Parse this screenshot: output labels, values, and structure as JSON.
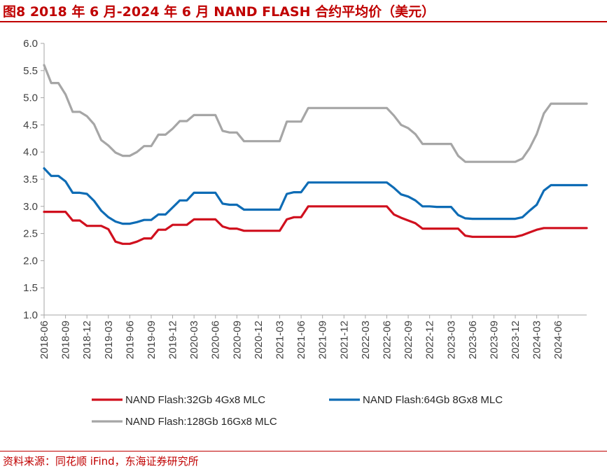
{
  "title": "图8  2018 年 6 月-2024 年 6 月 NAND FLASH 合约平均价（美元）",
  "source": "资料来源：同花顺 iFind，东海证券研究所",
  "chart_data": {
    "type": "line",
    "ylim": [
      1.0,
      6.0
    ],
    "ytick_labels": [
      "1.0",
      "1.5",
      "2.0",
      "2.5",
      "3.0",
      "3.5",
      "4.0",
      "4.5",
      "5.0",
      "5.5",
      "6.0"
    ],
    "xtick_labels": [
      "2018-06",
      "2018-09",
      "2018-12",
      "2019-03",
      "2019-06",
      "2019-09",
      "2019-12",
      "2020-03",
      "2020-06",
      "2020-09",
      "2020-12",
      "2021-03",
      "2021-06",
      "2021-09",
      "2021-12",
      "2022-03",
      "2022-06",
      "2022-09",
      "2022-12",
      "2023-03",
      "2023-06",
      "2023-09",
      "2023-12",
      "2024-03",
      "2024-06"
    ],
    "grid": false,
    "legend_position": "bottom",
    "series": [
      {
        "name": "NAND Flash:32Gb 4Gx8 MLC",
        "color": "#d0101e",
        "values": [
          2.9,
          2.9,
          2.9,
          2.9,
          2.74,
          2.74,
          2.64,
          2.64,
          2.64,
          2.58,
          2.35,
          2.31,
          2.31,
          2.35,
          2.41,
          2.41,
          2.57,
          2.57,
          2.66,
          2.66,
          2.66,
          2.76,
          2.76,
          2.76,
          2.76,
          2.63,
          2.59,
          2.59,
          2.55,
          2.55,
          2.55,
          2.55,
          2.55,
          2.55,
          2.76,
          2.8,
          2.8,
          3.0,
          3.0,
          3.0,
          3.0,
          3.0,
          3.0,
          3.0,
          3.0,
          3.0,
          3.0,
          3.0,
          3.0,
          2.85,
          2.79,
          2.74,
          2.69,
          2.59,
          2.59,
          2.59,
          2.59,
          2.59,
          2.59,
          2.46,
          2.44,
          2.44,
          2.44,
          2.44,
          2.44,
          2.44,
          2.44,
          2.47,
          2.52,
          2.57,
          2.6,
          2.6,
          2.6,
          2.6,
          2.6,
          2.6,
          2.6
        ]
      },
      {
        "name": "NAND Flash:64Gb 8Gx8 MLC",
        "color": "#0e6cb5",
        "values": [
          3.7,
          3.56,
          3.56,
          3.46,
          3.25,
          3.25,
          3.23,
          3.1,
          2.92,
          2.8,
          2.72,
          2.68,
          2.68,
          2.71,
          2.75,
          2.75,
          2.85,
          2.85,
          2.98,
          3.11,
          3.11,
          3.25,
          3.25,
          3.25,
          3.25,
          3.05,
          3.03,
          3.03,
          2.94,
          2.94,
          2.94,
          2.94,
          2.94,
          2.94,
          3.23,
          3.26,
          3.26,
          3.44,
          3.44,
          3.44,
          3.44,
          3.44,
          3.44,
          3.44,
          3.44,
          3.44,
          3.44,
          3.44,
          3.44,
          3.34,
          3.22,
          3.18,
          3.11,
          3.0,
          3.0,
          2.99,
          2.99,
          2.99,
          2.84,
          2.78,
          2.77,
          2.77,
          2.77,
          2.77,
          2.77,
          2.77,
          2.77,
          2.8,
          2.92,
          3.03,
          3.29,
          3.39,
          3.39,
          3.39,
          3.39,
          3.39,
          3.39
        ]
      },
      {
        "name": "NAND Flash:128Gb 16Gx8 MLC",
        "color": "#a6a6a6",
        "values": [
          5.6,
          5.27,
          5.27,
          5.06,
          4.74,
          4.74,
          4.66,
          4.51,
          4.22,
          4.12,
          3.99,
          3.93,
          3.93,
          4.0,
          4.11,
          4.11,
          4.32,
          4.32,
          4.43,
          4.57,
          4.57,
          4.68,
          4.68,
          4.68,
          4.68,
          4.39,
          4.36,
          4.36,
          4.2,
          4.2,
          4.2,
          4.2,
          4.2,
          4.2,
          4.56,
          4.56,
          4.56,
          4.81,
          4.81,
          4.81,
          4.81,
          4.81,
          4.81,
          4.81,
          4.81,
          4.81,
          4.81,
          4.81,
          4.81,
          4.67,
          4.5,
          4.44,
          4.33,
          4.15,
          4.15,
          4.15,
          4.15,
          4.15,
          3.93,
          3.82,
          3.82,
          3.82,
          3.82,
          3.82,
          3.82,
          3.82,
          3.82,
          3.88,
          4.07,
          4.33,
          4.71,
          4.89,
          4.89,
          4.89,
          4.89,
          4.89,
          4.89
        ]
      }
    ]
  }
}
